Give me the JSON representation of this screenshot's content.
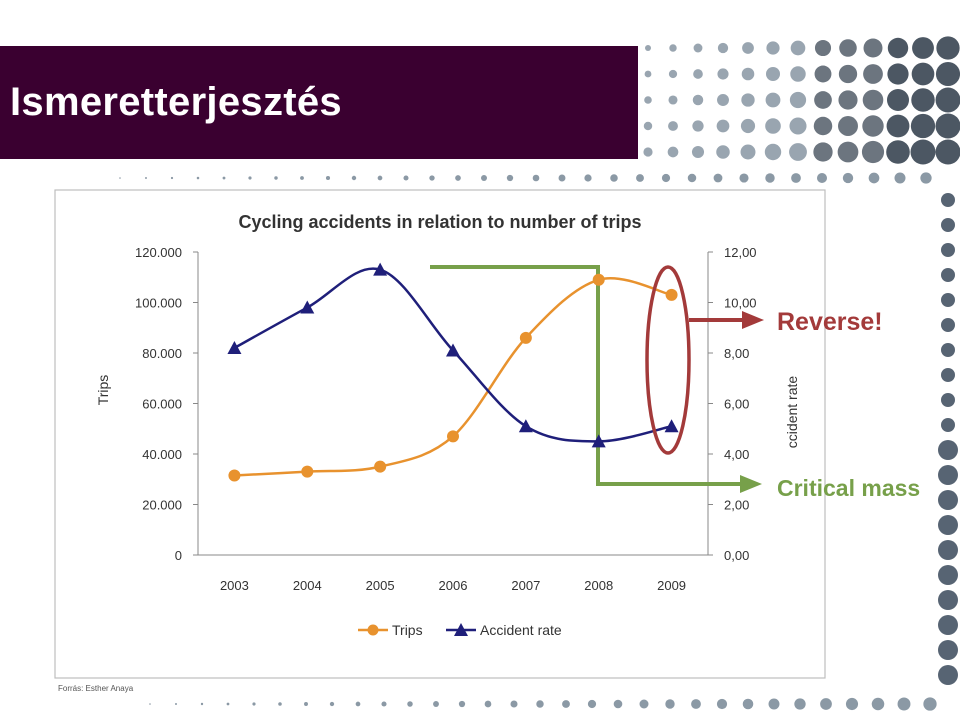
{
  "slide": {
    "title": "Ismeretterjesztés",
    "source": "Forrás: Esther Anaya"
  },
  "colors": {
    "title_bar": "#3a0030",
    "trips": "#e8922e",
    "accident_rate": "#1f1f7a",
    "annotation_red": "#a33a3a",
    "annotation_green": "#77a04a",
    "dots": "#6e7f8e"
  },
  "annotations": {
    "reverse": "Reverse!",
    "critical_mass": "Critical mass"
  },
  "chart_data": {
    "type": "line",
    "title": "Cycling accidents in relation to number of trips",
    "categories": [
      "2003",
      "2004",
      "2005",
      "2006",
      "2007",
      "2008",
      "2009"
    ],
    "ylabel": "Trips",
    "y2label": "ccident rate",
    "ylim": [
      0,
      120000
    ],
    "y2lim": [
      0,
      12
    ],
    "y_ticks": [
      "0",
      "20.000",
      "40.000",
      "60.000",
      "80.000",
      "100.000",
      "120.000"
    ],
    "y2_ticks": [
      "0,00",
      "2,00",
      "4,00",
      "6,00",
      "8,00",
      "10,00",
      "12,00"
    ],
    "series": [
      {
        "name": "Trips",
        "axis": "left",
        "marker": "circle",
        "values": [
          31500,
          33000,
          35000,
          47000,
          86000,
          109000,
          103000
        ]
      },
      {
        "name": "Accident rate",
        "axis": "right",
        "marker": "triangle",
        "values": [
          8.2,
          9.8,
          11.3,
          8.1,
          5.1,
          4.5,
          5.1
        ]
      }
    ],
    "legend": "bottom",
    "grid": false
  }
}
